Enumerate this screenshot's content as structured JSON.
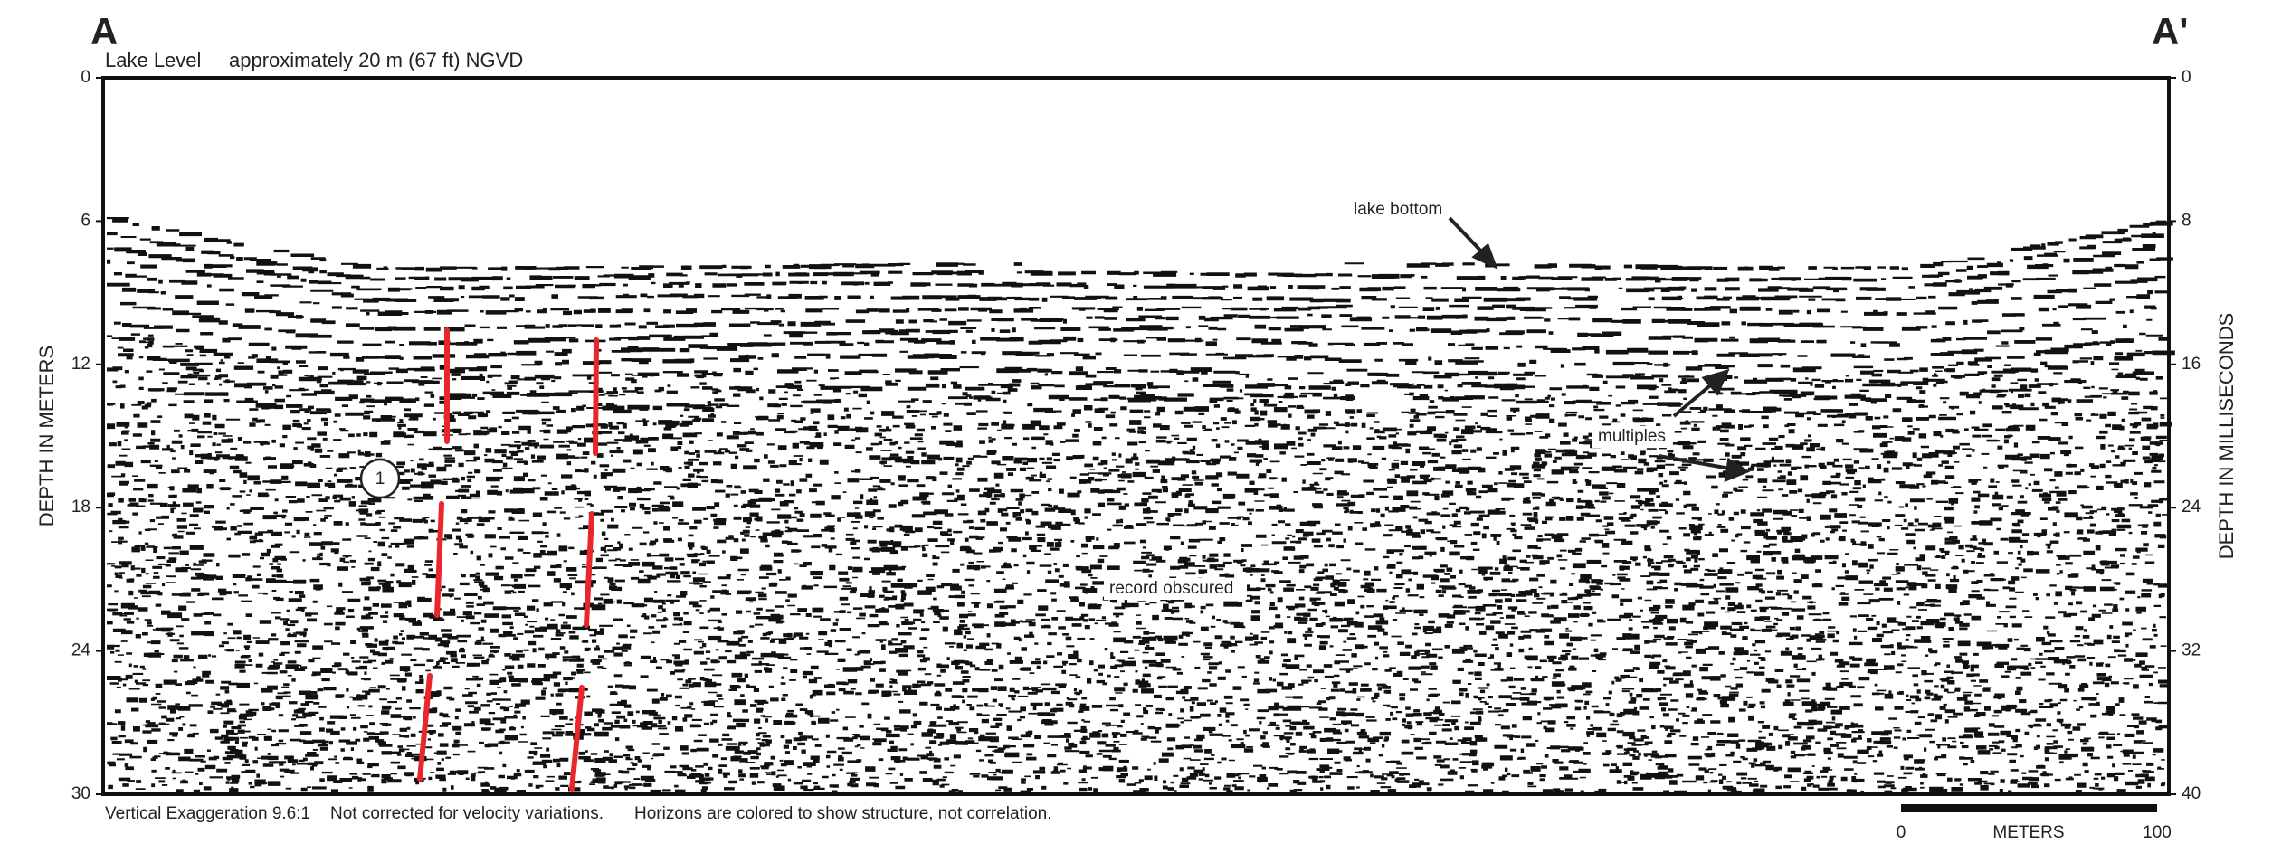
{
  "header": {
    "left_label": "A",
    "right_label": "A'",
    "lake_level_label": "Lake Level",
    "lake_level_value": "approximately 20 m (67 ft) NGVD"
  },
  "left_axis": {
    "title": "DEPTH IN METERS",
    "ticks": [
      "0",
      "6",
      "12",
      "18",
      "24",
      "30"
    ]
  },
  "right_axis": {
    "title": "DEPTH IN MILLISECONDS",
    "ticks": [
      "0",
      "8",
      "16",
      "24",
      "32",
      "40"
    ]
  },
  "annotations": {
    "lake_bottom": "lake bottom",
    "multiples": "multiples",
    "record_obscured": "record obscured",
    "horizon_marker": "1"
  },
  "footer": {
    "notes": [
      "Vertical Exaggeration 9.6:1",
      "Not corrected for velocity variations.",
      "Horizons are colored to show structure, not correlation."
    ]
  },
  "scale_bar": {
    "start": "0",
    "unit": "METERS",
    "end": "100"
  }
}
